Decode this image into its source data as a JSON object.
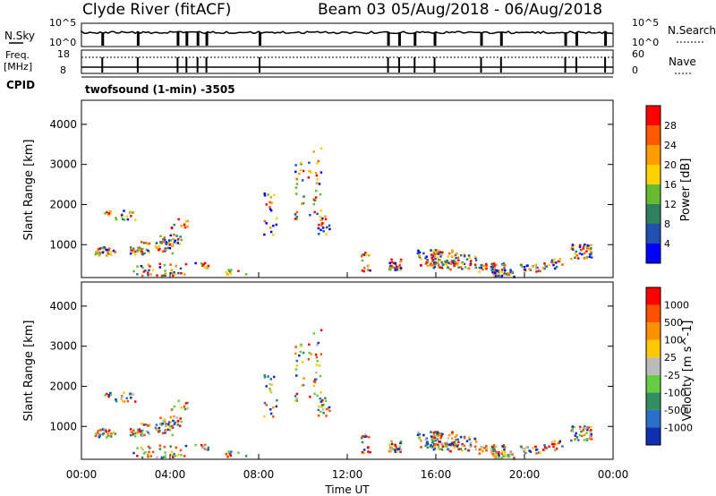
{
  "header": {
    "radar": "Clyde River (fitACF)",
    "beam": "Beam 03",
    "date_range": "05/Aug/2018 - 06/Aug/2018"
  },
  "top_panel": {
    "left_label": "N.Sky",
    "right_label": "N.Search",
    "left_ticks": [
      "10^5",
      "10^0"
    ],
    "right_ticks": [
      "10^5",
      "10^0"
    ]
  },
  "freq_panel": {
    "left_label_1": "Freq.",
    "left_label_2": "[MHz]",
    "right_label": "Nave",
    "left_ticks": [
      "18",
      "8"
    ],
    "right_ticks": [
      "60",
      "0"
    ],
    "cpid_label": "CPID",
    "cpid_value": "twofsound (1-min) -3505"
  },
  "chart_data": [
    {
      "type": "heatmap",
      "title": "",
      "ylabel": "Slant Range [km]",
      "yticks": [
        "1000",
        "2000",
        "3000",
        "4000"
      ],
      "ylim": [
        180,
        4600
      ],
      "xlim": [
        0,
        24
      ],
      "colorbar_label": "Power [dB]",
      "colorbar_ticks": [
        "4",
        "8",
        "12",
        "16",
        "20",
        "24",
        "28"
      ],
      "colors": [
        "#0000ff",
        "#2050b0",
        "#308060",
        "#66bb33",
        "#ffd200",
        "#ff9c00",
        "#ff5a00",
        "#ff0000"
      ]
    },
    {
      "type": "heatmap",
      "title": "",
      "ylabel": "Slant Range [km]",
      "yticks": [
        "1000",
        "2000",
        "3000",
        "4000"
      ],
      "ylim": [
        180,
        4600
      ],
      "xlim": [
        0,
        24
      ],
      "xlabel": "Time UT",
      "xticks": [
        "00:00",
        "04:00",
        "08:00",
        "12:00",
        "16:00",
        "20:00",
        "00:00"
      ],
      "colorbar_label": "Velocity [m s^-1]",
      "colorbar_ticks": [
        "1000",
        "500",
        "100",
        "25",
        "-25",
        "-100",
        "-500",
        "-1000"
      ],
      "colors": [
        "#1030b0",
        "#2a70c8",
        "#2f8f5f",
        "#66cc44",
        "#bbbbbb",
        "#ffc800",
        "#ff9000",
        "#ff5000",
        "#ff0000"
      ]
    }
  ]
}
